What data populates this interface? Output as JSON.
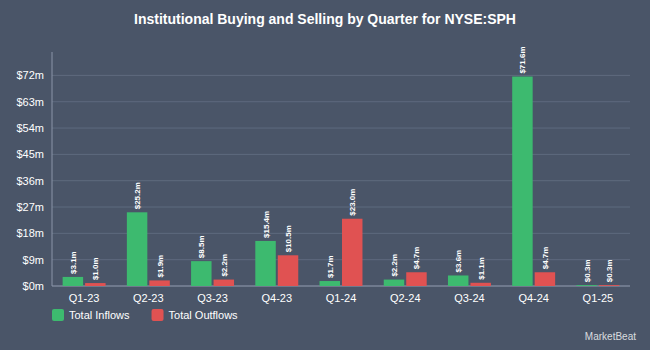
{
  "chart_data": {
    "type": "bar",
    "title": "Institutional Buying and Selling by Quarter for NYSE:SPH",
    "categories": [
      "Q1-23",
      "Q2-23",
      "Q3-23",
      "Q4-23",
      "Q1-24",
      "Q2-24",
      "Q3-24",
      "Q4-24",
      "Q1-25"
    ],
    "series": [
      {
        "name": "Total Inflows",
        "color": "#3dba6f",
        "values": [
          3.1,
          25.2,
          8.5,
          15.4,
          1.7,
          2.2,
          3.6,
          71.6,
          0.3
        ],
        "value_labels": [
          "$3.1m",
          "$25.2m",
          "$8.5m",
          "$15.4m",
          "$1.7m",
          "$2.2m",
          "$3.6m",
          "$71.6m",
          "$0.3m"
        ]
      },
      {
        "name": "Total Outflows",
        "color": "#e05252",
        "values": [
          1.0,
          1.9,
          2.2,
          10.5,
          23.0,
          4.7,
          1.1,
          4.7,
          0.3
        ],
        "value_labels": [
          "$1.0m",
          "$1.9m",
          "$2.2m",
          "$10.5m",
          "$23.0m",
          "$4.7m",
          "$1.1m",
          "$4.7m",
          "$0.3m"
        ]
      }
    ],
    "ylim": [
      0,
      80
    ],
    "yticks": [
      {
        "value": 0,
        "label": "$0m"
      },
      {
        "value": 9,
        "label": "$9m"
      },
      {
        "value": 18,
        "label": "$18m"
      },
      {
        "value": 27,
        "label": "$27m"
      },
      {
        "value": 36,
        "label": "$36m"
      },
      {
        "value": 45,
        "label": "$45m"
      },
      {
        "value": 54,
        "label": "$54m"
      },
      {
        "value": 63,
        "label": "$63m"
      },
      {
        "value": 72,
        "label": "$72m"
      }
    ],
    "grid": true,
    "legend": "bottom",
    "data_labels": true,
    "annotations": [
      "MarketBeat"
    ]
  }
}
